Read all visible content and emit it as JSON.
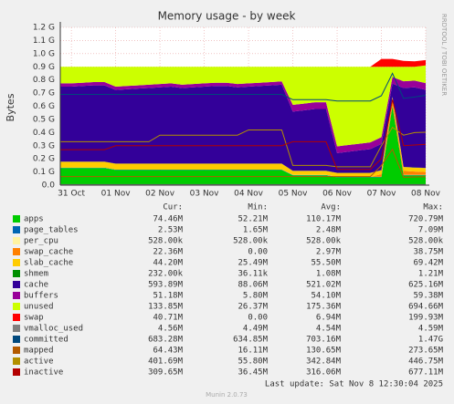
{
  "chart_data": {
    "type": "area",
    "title": "Memory usage - by week",
    "y_label": "Bytes",
    "side_note": "RRDTOOL / TOBI OETIKER",
    "footer": "Last update: Sat Nov  8 12:30:04 2025",
    "version": "Munin 2.0.73",
    "legend_headers": [
      "Cur:",
      "Min:",
      "Avg:",
      "Max:"
    ],
    "grid": true,
    "ylim": [
      0,
      1200000000
    ],
    "yticks": [
      {
        "value": 0,
        "label": "0.0"
      },
      {
        "value": 100000000,
        "label": "0.1 G"
      },
      {
        "value": 200000000,
        "label": "0.2 G"
      },
      {
        "value": 300000000,
        "label": "0.3 G"
      },
      {
        "value": 400000000,
        "label": "0.4 G"
      },
      {
        "value": 500000000,
        "label": "0.5 G"
      },
      {
        "value": 600000000,
        "label": "0.6 G"
      },
      {
        "value": 700000000,
        "label": "0.7 G"
      },
      {
        "value": 800000000,
        "label": "0.8 G"
      },
      {
        "value": 900000000,
        "label": "0.9 G"
      },
      {
        "value": 1000000000,
        "label": "1.0 G"
      },
      {
        "value": 1100000000,
        "label": "1.1 G"
      },
      {
        "value": 1200000000,
        "label": "1.2 G"
      }
    ],
    "categories": [
      null,
      "31 Oct",
      null,
      null,
      null,
      "01 Nov",
      null,
      null,
      null,
      "02 Nov",
      null,
      null,
      null,
      "03 Nov",
      null,
      null,
      null,
      "04 Nov",
      null,
      null,
      null,
      "05 Nov",
      null,
      null,
      null,
      "06 Nov",
      null,
      null,
      null,
      "07 Nov",
      null,
      null,
      null,
      "08 Nov"
    ],
    "series": [
      {
        "name": "apps",
        "color": "#00CC00",
        "stack": true,
        "stats": [
          "74.46M",
          "52.21M",
          "110.17M",
          "720.79M"
        ],
        "values": [
          130000000,
          130000000,
          130000000,
          130000000,
          130000000,
          115000000,
          115000000,
          115000000,
          115000000,
          115000000,
          115000000,
          115000000,
          115000000,
          115000000,
          115000000,
          115000000,
          115000000,
          115000000,
          115000000,
          115000000,
          115000000,
          75000000,
          75000000,
          75000000,
          75000000,
          60000000,
          60000000,
          60000000,
          60000000,
          60000000,
          600000000,
          75000000,
          75000000,
          75000000
        ]
      },
      {
        "name": "page_tables",
        "color": "#0066B3",
        "stack": true,
        "stats": [
          "2.53M",
          "1.65M",
          "2.48M",
          "7.09M"
        ],
        "values": [
          2500000,
          2500000,
          2500000,
          2500000,
          2500000,
          2500000,
          2500000,
          2500000,
          2500000,
          2500000,
          2500000,
          2500000,
          2500000,
          2500000,
          2500000,
          2500000,
          2500000,
          2500000,
          2500000,
          2500000,
          2500000,
          2500000,
          2500000,
          2500000,
          2500000,
          2500000,
          2500000,
          2500000,
          2500000,
          2500000,
          2500000,
          2500000,
          2500000,
          2500000
        ]
      },
      {
        "name": "per_cpu",
        "color": "#FFF3A0",
        "stack": true,
        "stats": [
          "528.00k",
          "528.00k",
          "528.00k",
          "528.00k"
        ],
        "values": [
          528000,
          528000,
          528000,
          528000,
          528000,
          528000,
          528000,
          528000,
          528000,
          528000,
          528000,
          528000,
          528000,
          528000,
          528000,
          528000,
          528000,
          528000,
          528000,
          528000,
          528000,
          528000,
          528000,
          528000,
          528000,
          528000,
          528000,
          528000,
          528000,
          528000,
          528000,
          528000,
          528000,
          528000
        ]
      },
      {
        "name": "swap_cache",
        "color": "#FF8000",
        "stack": true,
        "stats": [
          "22.36M",
          "0.00",
          "2.97M",
          "38.75M"
        ],
        "values": [
          0,
          0,
          0,
          0,
          0,
          0,
          0,
          0,
          0,
          0,
          0,
          0,
          0,
          0,
          0,
          0,
          0,
          0,
          0,
          0,
          0,
          0,
          0,
          0,
          0,
          0,
          0,
          0,
          0,
          20000000,
          38000000,
          30000000,
          25000000,
          22000000
        ]
      },
      {
        "name": "slab_cache",
        "color": "#FFCC00",
        "stack": true,
        "stats": [
          "44.20M",
          "25.49M",
          "55.50M",
          "69.42M"
        ],
        "values": [
          45000000,
          45000000,
          45000000,
          45000000,
          45000000,
          45000000,
          45000000,
          45000000,
          45000000,
          45000000,
          45000000,
          45000000,
          45000000,
          45000000,
          45000000,
          45000000,
          45000000,
          45000000,
          45000000,
          45000000,
          45000000,
          30000000,
          30000000,
          30000000,
          30000000,
          30000000,
          30000000,
          30000000,
          30000000,
          30000000,
          30000000,
          30000000,
          30000000,
          30000000
        ]
      },
      {
        "name": "shmem",
        "color": "#008F00",
        "stack": true,
        "stats": [
          "232.00k",
          "36.11k",
          "1.08M",
          "1.21M"
        ],
        "values": [
          1000000,
          1000000,
          1000000,
          1000000,
          1000000,
          1000000,
          1000000,
          1000000,
          1000000,
          1000000,
          1000000,
          1000000,
          1000000,
          1000000,
          1000000,
          1000000,
          1000000,
          1000000,
          1000000,
          1000000,
          1000000,
          1000000,
          1000000,
          1000000,
          1000000,
          1000000,
          1000000,
          1000000,
          1000000,
          1000000,
          1000000,
          1000000,
          1000000,
          1000000
        ]
      },
      {
        "name": "cache",
        "color": "#330099",
        "stack": true,
        "stats": [
          "593.89M",
          "88.06M",
          "521.02M",
          "625.16M"
        ],
        "values": [
          570000000,
          570000000,
          575000000,
          580000000,
          580000000,
          560000000,
          565000000,
          570000000,
          575000000,
          580000000,
          585000000,
          575000000,
          580000000,
          585000000,
          590000000,
          590000000,
          580000000,
          585000000,
          590000000,
          595000000,
          600000000,
          450000000,
          460000000,
          470000000,
          470000000,
          150000000,
          160000000,
          170000000,
          180000000,
          200000000,
          100000000,
          600000000,
          610000000,
          594000000
        ]
      },
      {
        "name": "buffers",
        "color": "#990099",
        "stack": true,
        "stats": [
          "51.18M",
          "5.80M",
          "54.10M",
          "59.38M"
        ],
        "values": [
          25000000,
          25000000,
          25000000,
          25000000,
          25000000,
          25000000,
          25000000,
          25000000,
          25000000,
          25000000,
          25000000,
          25000000,
          25000000,
          25000000,
          25000000,
          25000000,
          25000000,
          25000000,
          25000000,
          25000000,
          25000000,
          51000000,
          51000000,
          51000000,
          51000000,
          51000000,
          51000000,
          51000000,
          51000000,
          51000000,
          51000000,
          51000000,
          51000000,
          51000000
        ]
      },
      {
        "name": "unused",
        "color": "#CCFF00",
        "stack": true,
        "stats": [
          "133.85M",
          "26.37M",
          "175.36M",
          "694.66M"
        ],
        "values": [
          126000000,
          126000000,
          121000000,
          116000000,
          116000000,
          151000000,
          146000000,
          141000000,
          136000000,
          131000000,
          126000000,
          136000000,
          131000000,
          126000000,
          121000000,
          121000000,
          131000000,
          126000000,
          121000000,
          116000000,
          111000000,
          290000000,
          280000000,
          270000000,
          270000000,
          605000000,
          595000000,
          585000000,
          575000000,
          535000000,
          77000000,
          110000000,
          105000000,
          134000000
        ]
      },
      {
        "name": "swap",
        "color": "#FF0000",
        "stack": true,
        "stats": [
          "40.71M",
          "0.00",
          "6.94M",
          "199.93M"
        ],
        "values": [
          0,
          0,
          0,
          0,
          0,
          0,
          0,
          0,
          0,
          0,
          0,
          0,
          0,
          0,
          0,
          0,
          0,
          0,
          0,
          0,
          0,
          0,
          0,
          0,
          0,
          0,
          0,
          0,
          0,
          60000000,
          60000000,
          45000000,
          42000000,
          40700000
        ]
      },
      {
        "name": "vmalloc_used",
        "color": "#808080",
        "stack": false,
        "stats": [
          "4.56M",
          "4.49M",
          "4.54M",
          "4.59M"
        ],
        "values": [
          4500000,
          4500000,
          4500000,
          4500000,
          4500000,
          4500000,
          4500000,
          4500000,
          4500000,
          4500000,
          4500000,
          4500000,
          4500000,
          4500000,
          4500000,
          4500000,
          4500000,
          4500000,
          4500000,
          4500000,
          4500000,
          4500000,
          4500000,
          4500000,
          4500000,
          4500000,
          4500000,
          4500000,
          4500000,
          4500000,
          4500000,
          4500000,
          4500000,
          4500000
        ]
      },
      {
        "name": "committed",
        "color": "#00487D",
        "stack": false,
        "stats": [
          "683.28M",
          "634.85M",
          "703.16M",
          "1.47G"
        ],
        "values": [
          690000000,
          690000000,
          690000000,
          690000000,
          690000000,
          690000000,
          690000000,
          690000000,
          690000000,
          690000000,
          690000000,
          690000000,
          690000000,
          690000000,
          690000000,
          690000000,
          690000000,
          690000000,
          690000000,
          690000000,
          690000000,
          650000000,
          650000000,
          650000000,
          650000000,
          640000000,
          640000000,
          640000000,
          640000000,
          680000000,
          850000000,
          660000000,
          670000000,
          683000000
        ]
      },
      {
        "name": "mapped",
        "color": "#B35A00",
        "stack": false,
        "stats": [
          "64.43M",
          "16.11M",
          "130.65M",
          "273.65M"
        ],
        "values": [
          65000000,
          65000000,
          65000000,
          65000000,
          65000000,
          65000000,
          65000000,
          65000000,
          65000000,
          65000000,
          65000000,
          65000000,
          65000000,
          65000000,
          65000000,
          65000000,
          65000000,
          65000000,
          65000000,
          65000000,
          65000000,
          65000000,
          65000000,
          65000000,
          65000000,
          65000000,
          65000000,
          65000000,
          65000000,
          150000000,
          273000000,
          60000000,
          62000000,
          64430000
        ]
      },
      {
        "name": "active",
        "color": "#B38F00",
        "stack": false,
        "stats": [
          "401.69M",
          "55.80M",
          "342.84M",
          "446.75M"
        ],
        "values": [
          330000000,
          330000000,
          330000000,
          330000000,
          330000000,
          330000000,
          330000000,
          330000000,
          330000000,
          380000000,
          380000000,
          380000000,
          380000000,
          380000000,
          380000000,
          380000000,
          380000000,
          420000000,
          420000000,
          420000000,
          420000000,
          150000000,
          150000000,
          150000000,
          150000000,
          140000000,
          140000000,
          140000000,
          140000000,
          300000000,
          440000000,
          380000000,
          400000000,
          402000000
        ]
      },
      {
        "name": "inactive",
        "color": "#B30000",
        "stack": false,
        "stats": [
          "309.65M",
          "36.45M",
          "316.06M",
          "677.11M"
        ],
        "values": [
          270000000,
          270000000,
          270000000,
          270000000,
          270000000,
          300000000,
          300000000,
          300000000,
          300000000,
          300000000,
          300000000,
          300000000,
          300000000,
          300000000,
          300000000,
          300000000,
          300000000,
          300000000,
          300000000,
          300000000,
          300000000,
          330000000,
          330000000,
          330000000,
          330000000,
          120000000,
          120000000,
          120000000,
          120000000,
          200000000,
          650000000,
          300000000,
          305000000,
          310000000
        ]
      }
    ]
  }
}
